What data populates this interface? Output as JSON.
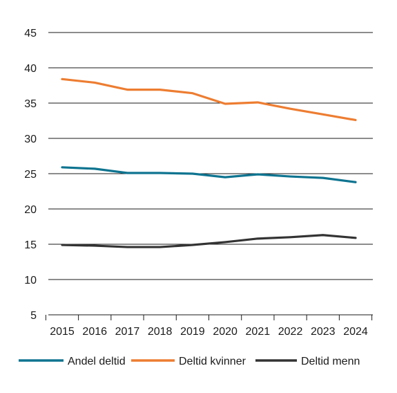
{
  "chart_data": {
    "type": "line",
    "title": "",
    "xlabel": "",
    "ylabel": "",
    "x": [
      "2015",
      "2016",
      "2017",
      "2018",
      "2019",
      "2020",
      "2021",
      "2022",
      "2023",
      "2024"
    ],
    "ylim": [
      5,
      45
    ],
    "yticks": [
      "5",
      "10",
      "15",
      "20",
      "25",
      "30",
      "35",
      "40",
      "45"
    ],
    "grid": true,
    "legend_position": "bottom",
    "series": [
      {
        "name": "Andel deltid",
        "color": "#0e7490",
        "values": [
          25.9,
          25.7,
          25.1,
          25.1,
          25.0,
          24.5,
          24.9,
          24.6,
          24.4,
          23.8
        ]
      },
      {
        "name": "Deltid kvinner",
        "color": "#ed7d31",
        "values": [
          38.4,
          37.9,
          36.9,
          36.9,
          36.4,
          34.9,
          35.1,
          34.2,
          33.4,
          32.6
        ]
      },
      {
        "name": "Deltid menn",
        "color": "#333333",
        "values": [
          14.9,
          14.8,
          14.6,
          14.6,
          14.9,
          15.3,
          15.8,
          16.0,
          16.3,
          15.9
        ]
      }
    ]
  }
}
